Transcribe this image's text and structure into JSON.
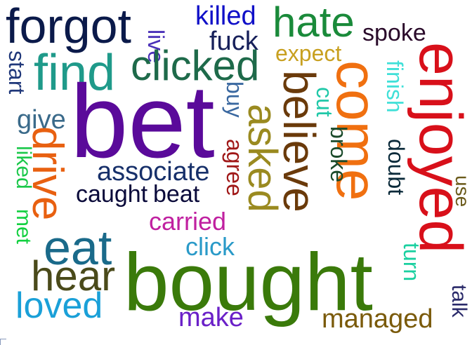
{
  "words": [
    {
      "text": "forgot",
      "color": "#0b1a4a"
    },
    {
      "text": "killed",
      "color": "#1010c8"
    },
    {
      "text": "live",
      "color": "#4a30b8"
    },
    {
      "text": "hate",
      "color": "#1a8a3a"
    },
    {
      "text": "fuck",
      "color": "#17205a"
    },
    {
      "text": "spoke",
      "color": "#2a0a2a"
    },
    {
      "text": "find",
      "color": "#1f9a8a"
    },
    {
      "text": "clicked",
      "color": "#1e6a4a"
    },
    {
      "text": "expect",
      "color": "#c8a020"
    },
    {
      "text": "enjoyed",
      "color": "#d8101a"
    },
    {
      "text": "start",
      "color": "#20387a"
    },
    {
      "text": "bet",
      "color": "#5a0a9a"
    },
    {
      "text": "buy",
      "color": "#3a68a0"
    },
    {
      "text": "come",
      "color": "#f07010"
    },
    {
      "text": "finish",
      "color": "#40e0d8"
    },
    {
      "text": "give",
      "color": "#3a6a8a"
    },
    {
      "text": "believe",
      "color": "#6a3a0a"
    },
    {
      "text": "asked",
      "color": "#9a8a20"
    },
    {
      "text": "cut",
      "color": "#20c8a8"
    },
    {
      "text": "agree",
      "color": "#a01818"
    },
    {
      "text": "broke",
      "color": "#1a4a2a"
    },
    {
      "text": "drive",
      "color": "#e86010"
    },
    {
      "text": "liked",
      "color": "#1ac84a"
    },
    {
      "text": "doubt",
      "color": "#0a2a3a"
    },
    {
      "text": "associate",
      "color": "#17306a"
    },
    {
      "text": "use",
      "color": "#6a5a1a"
    },
    {
      "text": "met",
      "color": "#12d040"
    },
    {
      "text": "caught",
      "color": "#0a0a3a"
    },
    {
      "text": "beat",
      "color": "#0a0a3a"
    },
    {
      "text": "carried",
      "color": "#c020a0"
    },
    {
      "text": "eat",
      "color": "#1a6a8a"
    },
    {
      "text": "click",
      "color": "#2a9ac8"
    },
    {
      "text": "turn",
      "color": "#1ad0a0"
    },
    {
      "text": "hear",
      "color": "#4a4a1a"
    },
    {
      "text": "bought",
      "color": "#3a7a0a"
    },
    {
      "text": "loved",
      "color": "#1aa0d8"
    },
    {
      "text": "talk",
      "color": "#2a2a6a"
    },
    {
      "text": "make",
      "color": "#6a20c8"
    },
    {
      "text": "managed",
      "color": "#7a5a0a"
    }
  ]
}
